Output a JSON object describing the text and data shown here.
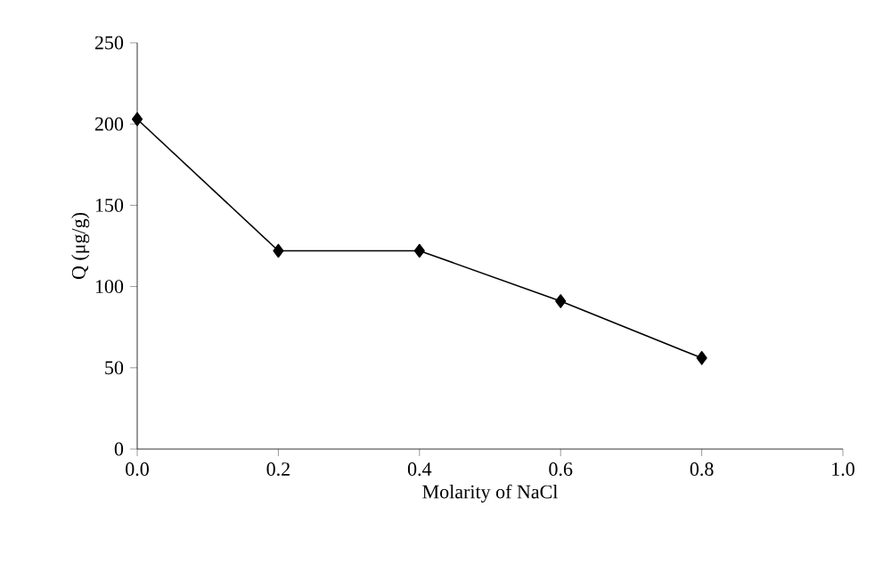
{
  "chart_data": {
    "type": "line",
    "xlabel": "Molarity of NaCl",
    "ylabel": "Q (μg/g)",
    "x": [
      0,
      0.2,
      0.4,
      0.6,
      0.8
    ],
    "series": [
      {
        "color": "#000000",
        "values": [
          203,
          122,
          122,
          91,
          56
        ]
      }
    ],
    "marker": "diamond",
    "line_style": "solid",
    "grid": false,
    "xlim": [
      0,
      1
    ],
    "xticks": [
      {
        "value": 0,
        "label": "0.0"
      },
      {
        "value": 0.2,
        "label": "0.2"
      },
      {
        "value": 0.4,
        "label": "0.4"
      },
      {
        "value": 0.6,
        "label": "0.6"
      },
      {
        "value": 0.8,
        "label": "0.8"
      },
      {
        "value": 1,
        "label": "1.0"
      }
    ],
    "ylim": [
      0,
      250
    ],
    "yticks": [
      0,
      50,
      100,
      150,
      200,
      250
    ]
  }
}
